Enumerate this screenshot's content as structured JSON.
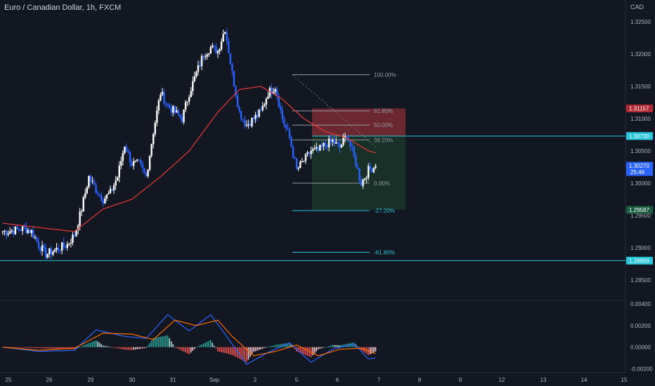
{
  "header": {
    "title": "Euro / Canadian Dollar, 1h, FXCM",
    "currency": "CAD"
  },
  "colors": {
    "background": "#131722",
    "up": "#ffffff",
    "down": "#2962ff",
    "ma": "#e53935",
    "fib": "#9598a1",
    "fib_ext": "#26c6da",
    "hline": "#26c6da",
    "stop_zone": "#8b2f35",
    "target_zone": "#1c3a2c",
    "macd": "#2962ff",
    "signal": "#ff6d00",
    "hist_pos": "#26a69a",
    "hist_pos_light": "#b2dfdb",
    "hist_neg": "#ef5350",
    "hist_neg_light": "#ffcdd2"
  },
  "price_axis": {
    "ticks": [
      "1.32500",
      "1.32000",
      "1.31500",
      "1.31000",
      "1.30500",
      "1.30000",
      "1.29500",
      "1.29000",
      "1.28500"
    ],
    "tick_values": [
      1.325,
      1.32,
      1.315,
      1.31,
      1.305,
      1.3,
      1.295,
      1.29,
      1.285
    ]
  },
  "price_labels": [
    {
      "text": "1.31157",
      "value": 1.31157,
      "bg": "#b22833"
    },
    {
      "text": "1.30733",
      "value": 1.30733,
      "bg": "#5d606b"
    },
    {
      "text": "1.30730",
      "value": 1.3073,
      "bg": "#26c6da"
    },
    {
      "text": "1.30270",
      "sub": "25:46",
      "value": 1.3027,
      "bg": "#2962ff"
    },
    {
      "text": "1.29587",
      "value": 1.29587,
      "bg": "#1b5e3f"
    },
    {
      "text": "1.28800",
      "value": 1.288,
      "bg": "#26c6da"
    }
  ],
  "horizontal_lines": [
    1.3073,
    1.288
  ],
  "fib_levels": [
    {
      "label": "100.00%",
      "value": 1.3168,
      "ext": false
    },
    {
      "label": "61.80%",
      "value": 1.3112,
      "ext": false
    },
    {
      "label": "50.00%",
      "value": 1.309,
      "ext": false
    },
    {
      "label": "38.20%",
      "value": 1.3067,
      "ext": false
    },
    {
      "label": "0.00%",
      "value": 1.3,
      "ext": false
    },
    {
      "label": "-27.20%",
      "value": 1.29575,
      "ext": true
    },
    {
      "label": "-61.80%",
      "value": 1.2893,
      "ext": true
    }
  ],
  "position": {
    "stop": 1.31157,
    "entry": 1.30733,
    "target": 1.29587
  },
  "macd_axis": {
    "ticks": [
      "0.00400",
      "0.00200",
      "0.00000",
      "-0.00200"
    ],
    "tick_values": [
      0.004,
      0.002,
      0.0,
      -0.002
    ]
  },
  "time_axis": [
    "25",
    "26",
    "29",
    "30",
    "31",
    "Sep",
    "2",
    "5",
    "6",
    "7",
    "8",
    "9",
    "12",
    "13",
    "14",
    "15"
  ],
  "chart_data": {
    "type": "candlestick",
    "symbol": "Euro / Canadian Dollar",
    "interval": "1h",
    "close_path": [
      [
        0,
        1.2925
      ],
      [
        1,
        1.2926
      ],
      [
        2,
        1.2928
      ],
      [
        3,
        1.293
      ],
      [
        4,
        1.2925
      ],
      [
        5,
        1.2905
      ],
      [
        6,
        1.289
      ],
      [
        7,
        1.2895
      ],
      [
        8,
        1.29
      ],
      [
        9,
        1.2905
      ],
      [
        10,
        1.292
      ],
      [
        11,
        1.296
      ],
      [
        12,
        1.301
      ],
      [
        13,
        1.299
      ],
      [
        14,
        1.2975
      ],
      [
        15,
        1.2985
      ],
      [
        16,
        1.301
      ],
      [
        17,
        1.306
      ],
      [
        18,
        1.303
      ],
      [
        19,
        1.303
      ],
      [
        20,
        1.301
      ],
      [
        21,
        1.308
      ],
      [
        22,
        1.314
      ],
      [
        23,
        1.312
      ],
      [
        24,
        1.311
      ],
      [
        25,
        1.31
      ],
      [
        26,
        1.314
      ],
      [
        27,
        1.317
      ],
      [
        28,
        1.32
      ],
      [
        29,
        1.321
      ],
      [
        30,
        1.3205
      ],
      [
        31,
        1.324
      ],
      [
        32,
        1.317
      ],
      [
        33,
        1.311
      ],
      [
        34,
        1.309
      ],
      [
        35,
        1.31
      ],
      [
        36,
        1.311
      ],
      [
        37,
        1.314
      ],
      [
        38,
        1.315
      ],
      [
        39,
        1.31
      ],
      [
        40,
        1.307
      ],
      [
        41,
        1.302
      ],
      [
        42,
        1.3035
      ],
      [
        43,
        1.305
      ],
      [
        44,
        1.305
      ],
      [
        45,
        1.306
      ],
      [
        46,
        1.3065
      ],
      [
        47,
        1.3055
      ],
      [
        48,
        1.3075
      ],
      [
        49,
        1.304
      ],
      [
        50,
        1.3
      ],
      [
        51,
        1.302
      ],
      [
        52,
        1.3027
      ]
    ],
    "moving_average": [
      [
        0,
        1.2938
      ],
      [
        6,
        1.293
      ],
      [
        10,
        1.2925
      ],
      [
        14,
        1.296
      ],
      [
        18,
        1.2975
      ],
      [
        22,
        1.301
      ],
      [
        26,
        1.305
      ],
      [
        30,
        1.311
      ],
      [
        33,
        1.3145
      ],
      [
        36,
        1.315
      ],
      [
        39,
        1.313
      ],
      [
        42,
        1.31
      ],
      [
        45,
        1.308
      ],
      [
        48,
        1.307
      ],
      [
        51,
        1.305
      ],
      [
        52,
        1.3047
      ]
    ],
    "macd_line": [
      [
        0,
        0.0
      ],
      [
        5,
        -0.0004
      ],
      [
        10,
        -0.0003
      ],
      [
        13,
        0.0016
      ],
      [
        17,
        0.001
      ],
      [
        20,
        0.0008
      ],
      [
        23,
        0.003
      ],
      [
        26,
        0.0015
      ],
      [
        29,
        0.003
      ],
      [
        31,
        0.0012
      ],
      [
        34,
        -0.0016
      ],
      [
        37,
        -0.0005
      ],
      [
        40,
        0.0004
      ],
      [
        43,
        -0.0014
      ],
      [
        46,
        -0.0002
      ],
      [
        49,
        0.0003
      ],
      [
        51,
        -0.0011
      ],
      [
        52,
        -0.001
      ]
    ],
    "signal_line": [
      [
        0,
        0.0
      ],
      [
        5,
        -0.0003
      ],
      [
        10,
        -0.0001
      ],
      [
        14,
        0.0013
      ],
      [
        18,
        0.0012
      ],
      [
        21,
        0.0007
      ],
      [
        24,
        0.0025
      ],
      [
        27,
        0.002
      ],
      [
        30,
        0.0025
      ],
      [
        32,
        0.001
      ],
      [
        35,
        -0.0008
      ],
      [
        38,
        -0.0004
      ],
      [
        41,
        0.0002
      ],
      [
        44,
        -0.0008
      ],
      [
        47,
        -0.0002
      ],
      [
        50,
        -0.0001
      ],
      [
        52,
        -0.0006
      ]
    ],
    "y_range": [
      1.2825,
      1.3275
    ],
    "macd_range": [
      -0.0023,
      0.0042
    ]
  }
}
